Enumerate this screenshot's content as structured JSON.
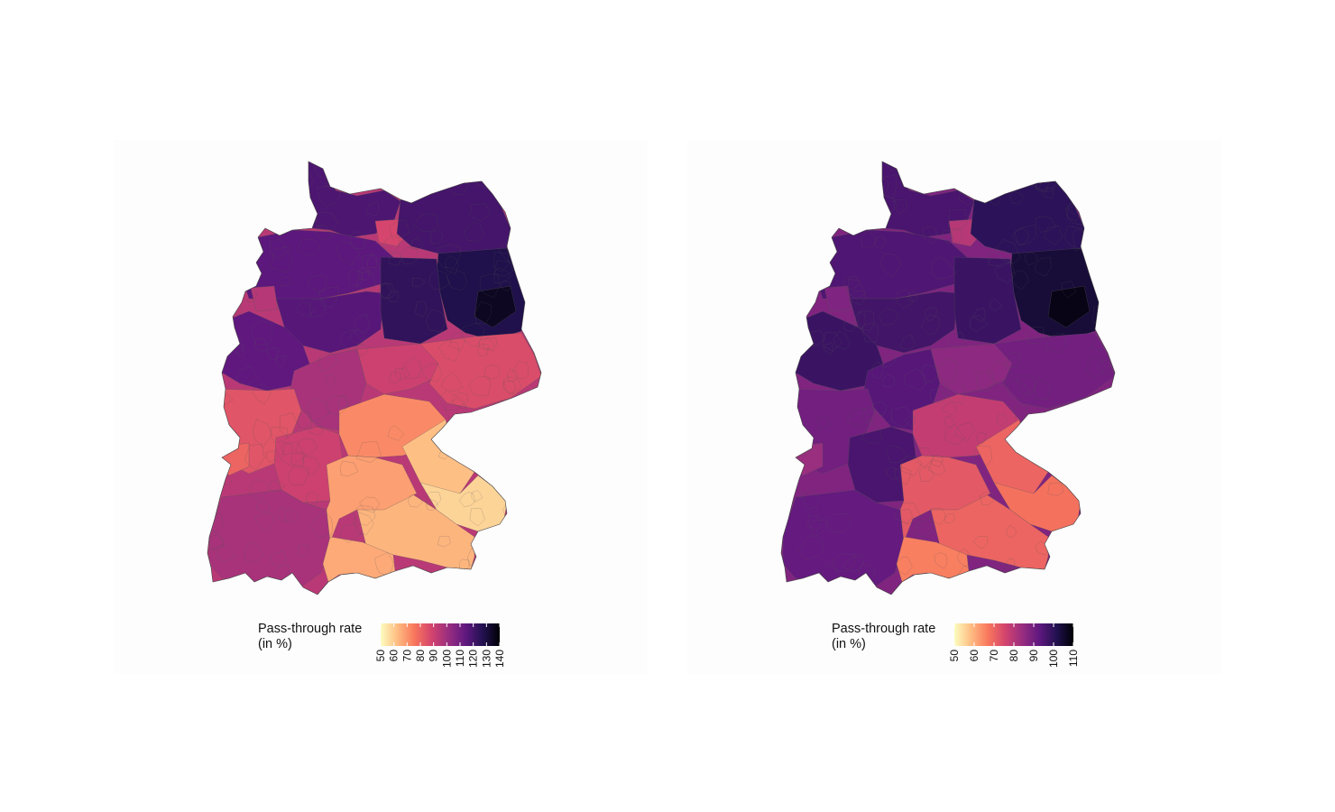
{
  "maps": [
    {
      "id": "left",
      "legend": {
        "title_line1": "Pass-through rate",
        "title_line2": "(in %)",
        "ticks": [
          "50",
          "60",
          "70",
          "80",
          "90",
          "100",
          "110",
          "120",
          "130",
          "140"
        ],
        "range": [
          50,
          140
        ]
      },
      "region_values": {
        "schleswig_holstein": 118,
        "hamburg": 88,
        "mecklenburg_vorpommern": 120,
        "niedersachsen_north": 115,
        "niedersachsen_south": 116,
        "bremen_area": 95,
        "brandenburg": 128,
        "berlin": 135,
        "sachsen_anhalt": 124,
        "nordrhein_westfalen": 114,
        "hessen": 98,
        "thueringen": 90,
        "sachsen": 86,
        "rheinland_pfalz": 84,
        "saarland": 80,
        "baden_wuerttemberg_north": 90,
        "baden_wuerttemberg_south": 98,
        "franken": 72,
        "oberpfalz": 62,
        "niederbayern": 58,
        "oberbayern": 64,
        "schwaben": 68,
        "alpine_south": 66
      }
    },
    {
      "id": "right",
      "legend": {
        "title_line1": "Pass-through rate",
        "title_line2": "(in %)",
        "ticks": [
          "50",
          "60",
          "70",
          "80",
          "90",
          "100",
          "110"
        ],
        "range": [
          50,
          110
        ]
      },
      "region_values": {
        "schleswig_holstein": 96,
        "hamburg": 80,
        "mecklenburg_vorpommern": 100,
        "niedersachsen_north": 95,
        "niedersachsen_south": 97,
        "bremen_area": 88,
        "brandenburg": 104,
        "berlin": 108,
        "sachsen_anhalt": 98,
        "nordrhein_westfalen": 98,
        "hessen": 94,
        "thueringen": 86,
        "sachsen": 90,
        "rheinland_pfalz": 90,
        "saarland": 84,
        "baden_wuerttemberg_north": 96,
        "baden_wuerttemberg_south": 92,
        "franken": 78,
        "oberpfalz": 70,
        "niederbayern": 68,
        "oberbayern": 70,
        "schwaben": 72,
        "alpine_south": 66
      }
    }
  ],
  "colors": {
    "colorscale": [
      "#fcfdbf",
      "#febb81",
      "#f8765c",
      "#d3436e",
      "#982d80",
      "#5f187f",
      "#221150",
      "#000004"
    ],
    "background": "#fdfdfd",
    "border": "#555555"
  }
}
